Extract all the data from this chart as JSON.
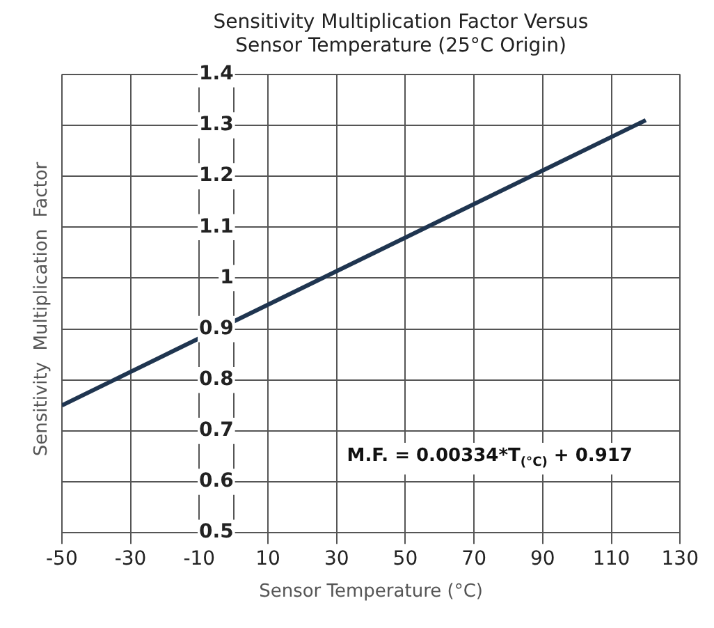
{
  "chart_data": {
    "type": "line",
    "title": "Sensitivity Multiplication Factor Versus Sensor Temperature (25°C Origin)",
    "xlabel": "Sensor Temperature (°C)",
    "ylabel": "Sensitivity  Multiplication  Factor",
    "annotations": [
      "M.F. = 0.00334*T$_{(°C)}$ + 0.917"
    ],
    "x": [
      -50,
      120
    ],
    "series": [
      {
        "color": "#1f3550",
        "values": [
          0.75,
          1.31
        ]
      }
    ],
    "xlim": [
      -50,
      130
    ],
    "xticks": [
      -50,
      -30,
      -10,
      10,
      30,
      50,
      70,
      90,
      110,
      130
    ],
    "ylim": [
      0.5,
      1.4
    ],
    "yticks": [
      0.5,
      0.6,
      0.7,
      0.8,
      0.9,
      1,
      1.1,
      1.2,
      1.3,
      1.4
    ],
    "grid": true,
    "legend": false,
    "marker": "none",
    "line_style": "solid"
  }
}
